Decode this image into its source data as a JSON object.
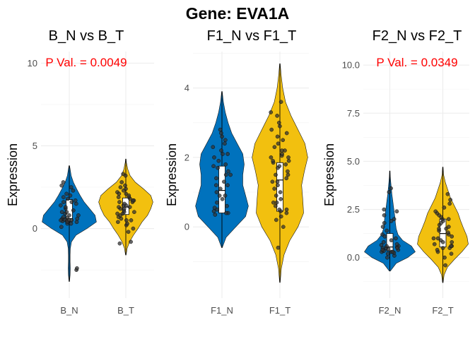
{
  "title": "Gene: EVA1A",
  "colors": {
    "normal": "#0072BD",
    "tumor": "#F2C00F",
    "pval": "#FF0000",
    "point": "#333333"
  },
  "chart_data": [
    {
      "type": "violin",
      "title": "B_N vs B_T",
      "ylabel": "Expression",
      "annotation": "P Val. = 0.0049",
      "categories": [
        "B_N",
        "B_T"
      ],
      "yticks": [
        0,
        5,
        10
      ],
      "ytick_labels": [
        "0",
        "5",
        "10"
      ],
      "ylim": [
        -4.2,
        10.7
      ],
      "groups": [
        {
          "name": "B_N",
          "min": -3.2,
          "max": 3.8,
          "q1": 0.45,
          "median": 0.6,
          "q3": 1.75,
          "density": [
            [
              -3.2,
              0.01
            ],
            [
              -2.8,
              0.03
            ],
            [
              -2.4,
              0.04
            ],
            [
              -2.0,
              0.03
            ],
            [
              -1.6,
              0.03
            ],
            [
              -1.2,
              0.04
            ],
            [
              -0.8,
              0.08
            ],
            [
              -0.4,
              0.25
            ],
            [
              0.0,
              0.65
            ],
            [
              0.4,
              1.0
            ],
            [
              0.8,
              0.95
            ],
            [
              1.2,
              0.75
            ],
            [
              1.6,
              0.55
            ],
            [
              2.0,
              0.4
            ],
            [
              2.4,
              0.27
            ],
            [
              2.8,
              0.15
            ],
            [
              3.2,
              0.07
            ],
            [
              3.6,
              0.03
            ],
            [
              3.8,
              0.01
            ]
          ],
          "points": [
            -2.5,
            -2.4,
            0.1,
            0.3,
            0.4,
            0.45,
            0.45,
            0.5,
            0.5,
            0.55,
            0.6,
            0.6,
            0.65,
            0.7,
            0.8,
            0.9,
            1.0,
            1.1,
            1.2,
            1.3,
            1.4,
            1.5,
            1.6,
            1.7,
            1.8,
            1.9,
            2.0,
            2.1,
            2.3,
            2.5,
            2.6,
            2.8,
            0.4,
            0.5,
            0.8,
            1.0,
            1.6,
            0.3
          ]
        },
        {
          "name": "B_T",
          "min": -1.6,
          "max": 4.2,
          "q1": 0.85,
          "median": 1.3,
          "q3": 1.85,
          "density": [
            [
              -1.6,
              0.01
            ],
            [
              -1.2,
              0.05
            ],
            [
              -0.8,
              0.14
            ],
            [
              -0.4,
              0.28
            ],
            [
              0.0,
              0.45
            ],
            [
              0.4,
              0.6
            ],
            [
              0.8,
              0.8
            ],
            [
              1.2,
              0.92
            ],
            [
              1.6,
              1.0
            ],
            [
              2.0,
              0.92
            ],
            [
              2.4,
              0.65
            ],
            [
              2.8,
              0.35
            ],
            [
              3.2,
              0.16
            ],
            [
              3.6,
              0.07
            ],
            [
              4.0,
              0.02
            ],
            [
              4.2,
              0.01
            ]
          ],
          "points": [
            -0.9,
            -0.8,
            -0.2,
            0.0,
            0.2,
            0.3,
            0.4,
            0.5,
            0.6,
            0.7,
            0.8,
            0.9,
            1.0,
            1.0,
            1.1,
            1.2,
            1.2,
            1.3,
            1.4,
            1.4,
            1.5,
            1.6,
            1.6,
            1.7,
            1.8,
            1.9,
            1.9,
            2.0,
            2.1,
            2.2,
            2.3,
            2.4,
            2.6,
            2.8,
            3.2,
            3.3,
            0.5,
            1.7,
            2.1,
            0.9,
            1.3,
            2.5
          ]
        }
      ]
    },
    {
      "type": "violin",
      "title": "F1_N vs F1_T",
      "ylabel": "Expression",
      "annotation": "",
      "categories": [
        "F1_N",
        "F1_T"
      ],
      "yticks": [
        0,
        2,
        4
      ],
      "ytick_labels": [
        "0",
        "2",
        "4"
      ],
      "ylim": [
        -2.05,
        5.05
      ],
      "groups": [
        {
          "name": "F1_N",
          "min": -0.6,
          "max": 3.9,
          "q1": 0.4,
          "median": 1.05,
          "q3": 1.75,
          "density": [
            [
              -0.6,
              0.01
            ],
            [
              -0.3,
              0.15
            ],
            [
              0.0,
              0.5
            ],
            [
              0.3,
              0.85
            ],
            [
              0.6,
              0.95
            ],
            [
              0.9,
              0.85
            ],
            [
              1.2,
              0.75
            ],
            [
              1.5,
              0.75
            ],
            [
              1.8,
              0.8
            ],
            [
              2.1,
              0.75
            ],
            [
              2.4,
              0.55
            ],
            [
              2.7,
              0.35
            ],
            [
              3.0,
              0.22
            ],
            [
              3.3,
              0.12
            ],
            [
              3.6,
              0.05
            ],
            [
              3.9,
              0.01
            ]
          ],
          "points": [
            0.35,
            0.4,
            0.4,
            0.45,
            0.5,
            0.55,
            0.6,
            0.7,
            0.8,
            0.9,
            1.0,
            1.1,
            1.2,
            1.3,
            1.4,
            1.5,
            1.6,
            1.7,
            1.8,
            1.9,
            2.0,
            2.1,
            2.2,
            2.3,
            2.4,
            2.5,
            2.6,
            2.7,
            2.8,
            1.5,
            0.9,
            1.75,
            2.1,
            1.2
          ]
        },
        {
          "name": "F1_T",
          "min": -1.6,
          "max": 4.7,
          "q1": 0.45,
          "median": 1.35,
          "q3": 1.85,
          "density": [
            [
              -1.6,
              0.01
            ],
            [
              -1.2,
              0.05
            ],
            [
              -0.8,
              0.15
            ],
            [
              -0.4,
              0.35
            ],
            [
              0.0,
              0.65
            ],
            [
              0.4,
              0.85
            ],
            [
              0.8,
              0.82
            ],
            [
              1.2,
              0.78
            ],
            [
              1.6,
              0.88
            ],
            [
              2.0,
              1.0
            ],
            [
              2.4,
              0.9
            ],
            [
              2.8,
              0.65
            ],
            [
              3.2,
              0.4
            ],
            [
              3.6,
              0.2
            ],
            [
              4.0,
              0.1
            ],
            [
              4.4,
              0.04
            ],
            [
              4.7,
              0.01
            ]
          ],
          "points": [
            -0.6,
            0.0,
            0.2,
            0.3,
            0.4,
            0.45,
            0.5,
            0.6,
            0.7,
            0.8,
            0.9,
            1.0,
            1.1,
            1.2,
            1.3,
            1.4,
            1.5,
            1.5,
            1.6,
            1.7,
            1.75,
            1.8,
            1.85,
            1.9,
            2.0,
            2.05,
            2.1,
            2.2,
            2.3,
            2.4,
            2.5,
            2.6,
            2.7,
            2.8,
            2.9,
            3.0,
            3.2,
            3.3,
            3.6,
            1.9,
            0.7,
            2.2,
            1.3,
            0.5,
            2.0
          ]
        }
      ]
    },
    {
      "type": "violin",
      "title": "F2_N vs F2_T",
      "ylabel": "Expression",
      "annotation": "P Val. = 0.0349",
      "categories": [
        "F2_N",
        "F2_T"
      ],
      "yticks": [
        0,
        2.5,
        5,
        7.5,
        10
      ],
      "ytick_labels": [
        "0.0",
        "2.5",
        "5.0",
        "7.5",
        "10.0"
      ],
      "ylim": [
        -2.1,
        10.7
      ],
      "groups": [
        {
          "name": "F2_N",
          "min": -0.7,
          "max": 4.5,
          "q1": 0.35,
          "median": 0.55,
          "q3": 1.25,
          "density": [
            [
              -0.7,
              0.02
            ],
            [
              -0.3,
              0.25
            ],
            [
              0.0,
              0.7
            ],
            [
              0.3,
              1.0
            ],
            [
              0.6,
              0.85
            ],
            [
              0.9,
              0.5
            ],
            [
              1.2,
              0.32
            ],
            [
              1.5,
              0.25
            ],
            [
              1.8,
              0.22
            ],
            [
              2.1,
              0.2
            ],
            [
              2.4,
              0.17
            ],
            [
              2.7,
              0.14
            ],
            [
              3.0,
              0.11
            ],
            [
              3.3,
              0.08
            ],
            [
              3.6,
              0.06
            ],
            [
              3.9,
              0.04
            ],
            [
              4.2,
              0.02
            ],
            [
              4.5,
              0.01
            ]
          ],
          "points": [
            0.0,
            0.1,
            0.2,
            0.25,
            0.3,
            0.3,
            0.35,
            0.4,
            0.45,
            0.5,
            0.5,
            0.55,
            0.6,
            0.65,
            0.7,
            0.8,
            0.9,
            1.0,
            1.2,
            1.4,
            1.6,
            1.8,
            2.0,
            2.2,
            2.4,
            2.5,
            3.4,
            3.6,
            0.4,
            0.6,
            0.3,
            0.5,
            1.1,
            1.9
          ]
        },
        {
          "name": "F2_T",
          "min": -1.3,
          "max": 4.7,
          "q1": 0.55,
          "median": 1.25,
          "q3": 2.0,
          "density": [
            [
              -1.3,
              0.01
            ],
            [
              -0.9,
              0.05
            ],
            [
              -0.5,
              0.18
            ],
            [
              -0.1,
              0.45
            ],
            [
              0.3,
              0.75
            ],
            [
              0.7,
              1.0
            ],
            [
              1.1,
              0.95
            ],
            [
              1.5,
              0.82
            ],
            [
              1.9,
              0.7
            ],
            [
              2.3,
              0.6
            ],
            [
              2.7,
              0.45
            ],
            [
              3.1,
              0.3
            ],
            [
              3.5,
              0.2
            ],
            [
              3.9,
              0.1
            ],
            [
              4.3,
              0.03
            ],
            [
              4.7,
              0.01
            ]
          ],
          "points": [
            -0.4,
            0.0,
            0.2,
            0.3,
            0.4,
            0.5,
            0.5,
            0.6,
            0.7,
            0.8,
            0.9,
            1.0,
            1.1,
            1.2,
            1.3,
            1.4,
            1.5,
            1.6,
            1.7,
            1.8,
            1.9,
            2.0,
            2.1,
            2.2,
            2.3,
            2.4,
            2.6,
            2.8,
            3.0,
            3.3,
            0.6,
            1.0,
            1.5,
            2.0,
            0.8
          ]
        }
      ]
    }
  ]
}
